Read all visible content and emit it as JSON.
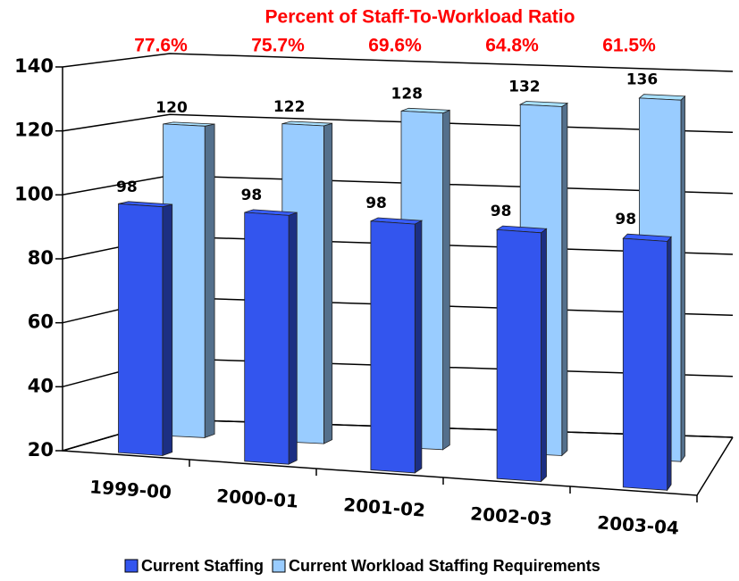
{
  "chart_data": {
    "type": "bar3d",
    "title": "Percent of Staff-To-Workload Ratio",
    "annotations": [
      "77.6%",
      "75.7%",
      "69.6%",
      "64.8%",
      "61.5%"
    ],
    "categories": [
      "1999-00",
      "2000-01",
      "2001-02",
      "2002-03",
      "2003-04"
    ],
    "series": [
      {
        "name": "Current Staffing",
        "color": "#3355ee",
        "values": [
          98,
          98,
          98,
          98,
          98
        ]
      },
      {
        "name": "Current Workload Staffing Requirements",
        "color": "#99ccff",
        "values": [
          120,
          122,
          128,
          132,
          136
        ]
      }
    ],
    "ylim": [
      20,
      140
    ],
    "yticks": [
      20,
      40,
      60,
      80,
      100,
      120,
      140
    ],
    "grid": true
  }
}
